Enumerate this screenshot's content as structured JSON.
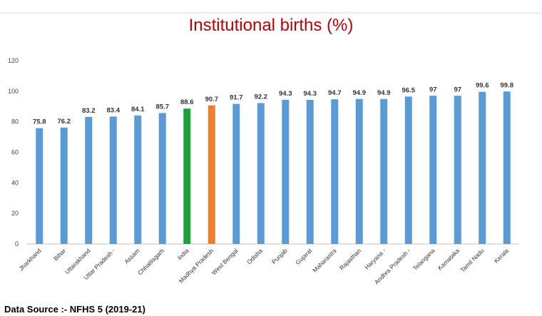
{
  "page": {
    "title": "Institutional births (%)",
    "source": "Data Source :- NFHS 5 (2019-21)"
  },
  "chart_data": {
    "type": "bar",
    "title": "Institutional births (%)",
    "categories": [
      "Jharkhand",
      "Bihar",
      "Uttarakhand",
      "Uttar Pradesh -",
      "Assam",
      "Chhattisgarh",
      "India",
      "Madhya Pradesh",
      "West Bengal",
      "Odisha",
      "Punjab",
      "Gujarat",
      "Maharastra",
      "Rajasthan",
      "Haryana -",
      "Andhra Pradesh -",
      "Telangana",
      "Karnataka",
      "Tamil Nadu",
      "Kerala"
    ],
    "values": [
      75.8,
      76.2,
      83.2,
      83.4,
      84.1,
      85.7,
      88.6,
      90.7,
      91.7,
      92.2,
      94.3,
      94.3,
      94.7,
      94.9,
      94.9,
      96.5,
      97,
      97,
      99.6,
      99.8
    ],
    "data_labels": [
      "75.8",
      "76.2",
      "83.2",
      "83.4",
      "84.1",
      "85.7",
      "88.6",
      "90.7",
      "91.7",
      "92.2",
      "94.3",
      "94.3",
      "94.7",
      "94.9",
      "94.9",
      "96.5",
      "97",
      "97",
      "99.6",
      "99.8"
    ],
    "yticks": [
      0,
      20,
      40,
      60,
      80,
      100,
      120
    ],
    "ylim": [
      0,
      120
    ],
    "grid": false,
    "legend": "none",
    "colors": {
      "default": "#5b9bd5",
      "India": "#1aa33a",
      "Madhya Pradesh": "#ed7d31",
      "axis": "#bfbfbf",
      "title": "#c00000"
    }
  }
}
